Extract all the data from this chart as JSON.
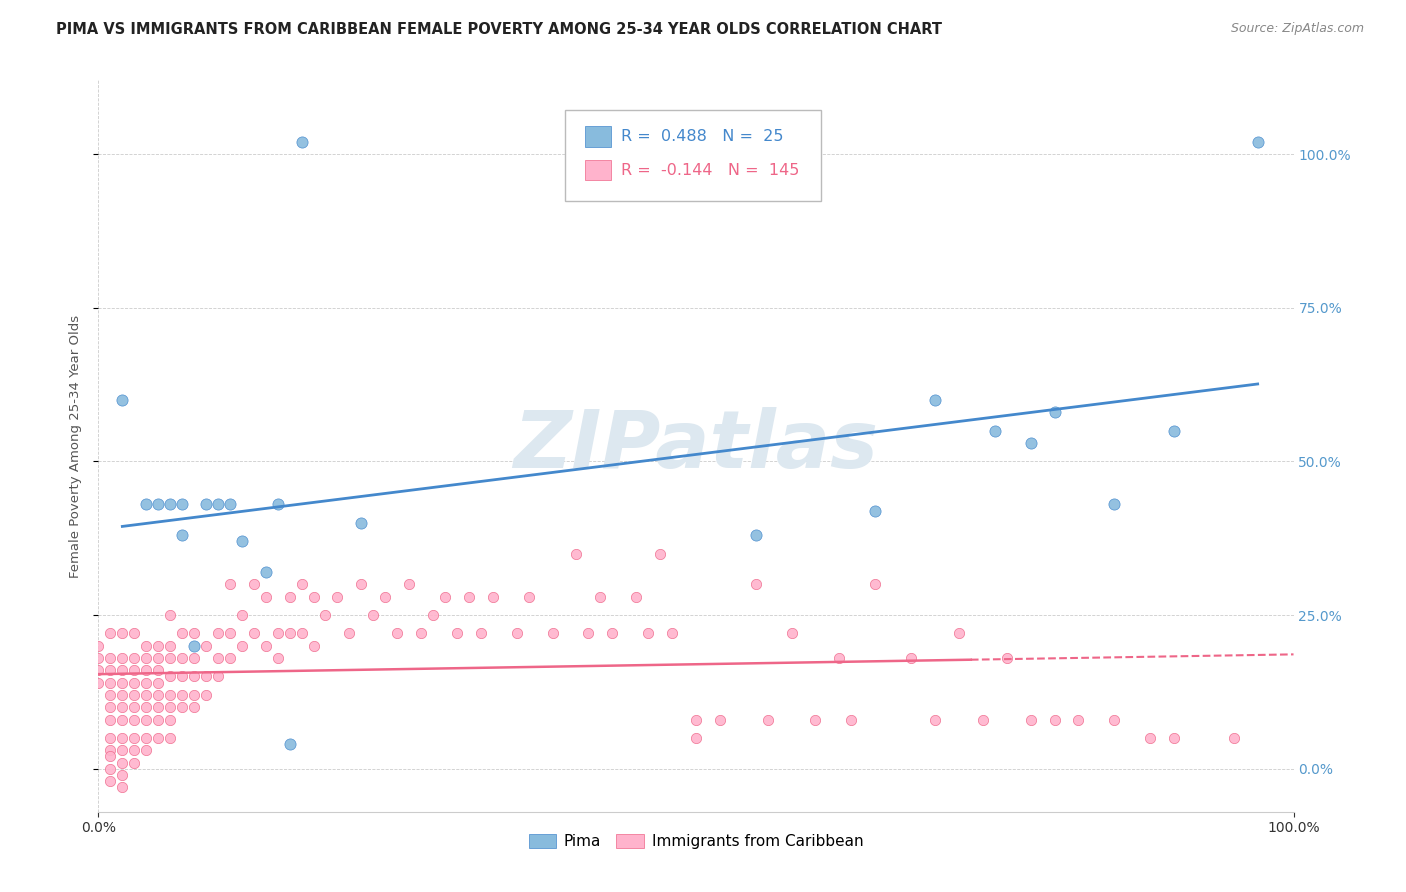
{
  "title": "PIMA VS IMMIGRANTS FROM CARIBBEAN FEMALE POVERTY AMONG 25-34 YEAR OLDS CORRELATION CHART",
  "source": "Source: ZipAtlas.com",
  "ylabel": "Female Poverty Among 25-34 Year Olds",
  "legend_labels": [
    "Pima",
    "Immigrants from Caribbean"
  ],
  "pima_R": 0.488,
  "pima_N": 25,
  "carib_R": -0.144,
  "carib_N": 145,
  "pima_color": "#88BBDD",
  "carib_color": "#FFB3CC",
  "pima_line_color": "#4488CC",
  "carib_line_color": "#EE6688",
  "right_axis_color": "#5599CC",
  "xlim": [
    0.0,
    1.0
  ],
  "ylim": [
    -0.07,
    1.12
  ],
  "yticks": [
    0.0,
    0.25,
    0.5,
    0.75,
    1.0
  ],
  "xtick_left": 0.0,
  "xtick_right": 1.0,
  "pima_points": [
    [
      0.02,
      0.6
    ],
    [
      0.04,
      0.43
    ],
    [
      0.05,
      0.43
    ],
    [
      0.06,
      0.43
    ],
    [
      0.07,
      0.43
    ],
    [
      0.07,
      0.38
    ],
    [
      0.08,
      0.2
    ],
    [
      0.09,
      0.43
    ],
    [
      0.1,
      0.43
    ],
    [
      0.11,
      0.43
    ],
    [
      0.12,
      0.37
    ],
    [
      0.14,
      0.32
    ],
    [
      0.15,
      0.43
    ],
    [
      0.16,
      0.04
    ],
    [
      0.17,
      1.02
    ],
    [
      0.22,
      0.4
    ],
    [
      0.55,
      0.38
    ],
    [
      0.65,
      0.42
    ],
    [
      0.7,
      0.6
    ],
    [
      0.75,
      0.55
    ],
    [
      0.78,
      0.53
    ],
    [
      0.8,
      0.58
    ],
    [
      0.85,
      0.43
    ],
    [
      0.9,
      0.55
    ],
    [
      0.97,
      1.02
    ]
  ],
  "carib_points": [
    [
      0.0,
      0.2
    ],
    [
      0.0,
      0.18
    ],
    [
      0.0,
      0.16
    ],
    [
      0.0,
      0.14
    ],
    [
      0.01,
      0.22
    ],
    [
      0.01,
      0.18
    ],
    [
      0.01,
      0.16
    ],
    [
      0.01,
      0.14
    ],
    [
      0.01,
      0.12
    ],
    [
      0.01,
      0.1
    ],
    [
      0.01,
      0.08
    ],
    [
      0.01,
      0.05
    ],
    [
      0.01,
      0.03
    ],
    [
      0.01,
      0.02
    ],
    [
      0.01,
      0.0
    ],
    [
      0.01,
      -0.02
    ],
    [
      0.02,
      0.22
    ],
    [
      0.02,
      0.18
    ],
    [
      0.02,
      0.16
    ],
    [
      0.02,
      0.14
    ],
    [
      0.02,
      0.12
    ],
    [
      0.02,
      0.1
    ],
    [
      0.02,
      0.08
    ],
    [
      0.02,
      0.05
    ],
    [
      0.02,
      0.03
    ],
    [
      0.02,
      0.01
    ],
    [
      0.02,
      -0.01
    ],
    [
      0.02,
      -0.03
    ],
    [
      0.03,
      0.22
    ],
    [
      0.03,
      0.18
    ],
    [
      0.03,
      0.16
    ],
    [
      0.03,
      0.14
    ],
    [
      0.03,
      0.12
    ],
    [
      0.03,
      0.1
    ],
    [
      0.03,
      0.08
    ],
    [
      0.03,
      0.05
    ],
    [
      0.03,
      0.03
    ],
    [
      0.03,
      0.01
    ],
    [
      0.04,
      0.2
    ],
    [
      0.04,
      0.18
    ],
    [
      0.04,
      0.16
    ],
    [
      0.04,
      0.14
    ],
    [
      0.04,
      0.12
    ],
    [
      0.04,
      0.1
    ],
    [
      0.04,
      0.08
    ],
    [
      0.04,
      0.05
    ],
    [
      0.04,
      0.03
    ],
    [
      0.05,
      0.2
    ],
    [
      0.05,
      0.18
    ],
    [
      0.05,
      0.16
    ],
    [
      0.05,
      0.14
    ],
    [
      0.05,
      0.12
    ],
    [
      0.05,
      0.1
    ],
    [
      0.05,
      0.08
    ],
    [
      0.05,
      0.05
    ],
    [
      0.06,
      0.25
    ],
    [
      0.06,
      0.2
    ],
    [
      0.06,
      0.18
    ],
    [
      0.06,
      0.15
    ],
    [
      0.06,
      0.12
    ],
    [
      0.06,
      0.1
    ],
    [
      0.06,
      0.08
    ],
    [
      0.06,
      0.05
    ],
    [
      0.07,
      0.22
    ],
    [
      0.07,
      0.18
    ],
    [
      0.07,
      0.15
    ],
    [
      0.07,
      0.12
    ],
    [
      0.07,
      0.1
    ],
    [
      0.08,
      0.22
    ],
    [
      0.08,
      0.18
    ],
    [
      0.08,
      0.15
    ],
    [
      0.08,
      0.12
    ],
    [
      0.08,
      0.1
    ],
    [
      0.09,
      0.2
    ],
    [
      0.09,
      0.15
    ],
    [
      0.09,
      0.12
    ],
    [
      0.1,
      0.22
    ],
    [
      0.1,
      0.18
    ],
    [
      0.1,
      0.15
    ],
    [
      0.11,
      0.3
    ],
    [
      0.11,
      0.22
    ],
    [
      0.11,
      0.18
    ],
    [
      0.12,
      0.25
    ],
    [
      0.12,
      0.2
    ],
    [
      0.13,
      0.3
    ],
    [
      0.13,
      0.22
    ],
    [
      0.14,
      0.28
    ],
    [
      0.14,
      0.2
    ],
    [
      0.15,
      0.22
    ],
    [
      0.15,
      0.18
    ],
    [
      0.16,
      0.28
    ],
    [
      0.16,
      0.22
    ],
    [
      0.17,
      0.3
    ],
    [
      0.17,
      0.22
    ],
    [
      0.18,
      0.28
    ],
    [
      0.18,
      0.2
    ],
    [
      0.19,
      0.25
    ],
    [
      0.2,
      0.28
    ],
    [
      0.21,
      0.22
    ],
    [
      0.22,
      0.3
    ],
    [
      0.23,
      0.25
    ],
    [
      0.24,
      0.28
    ],
    [
      0.25,
      0.22
    ],
    [
      0.26,
      0.3
    ],
    [
      0.27,
      0.22
    ],
    [
      0.28,
      0.25
    ],
    [
      0.29,
      0.28
    ],
    [
      0.3,
      0.22
    ],
    [
      0.31,
      0.28
    ],
    [
      0.32,
      0.22
    ],
    [
      0.33,
      0.28
    ],
    [
      0.35,
      0.22
    ],
    [
      0.36,
      0.28
    ],
    [
      0.38,
      0.22
    ],
    [
      0.4,
      0.35
    ],
    [
      0.41,
      0.22
    ],
    [
      0.42,
      0.28
    ],
    [
      0.43,
      0.22
    ],
    [
      0.45,
      0.28
    ],
    [
      0.46,
      0.22
    ],
    [
      0.47,
      0.35
    ],
    [
      0.48,
      0.22
    ],
    [
      0.5,
      0.08
    ],
    [
      0.5,
      0.05
    ],
    [
      0.52,
      0.08
    ],
    [
      0.55,
      0.3
    ],
    [
      0.56,
      0.08
    ],
    [
      0.58,
      0.22
    ],
    [
      0.6,
      0.08
    ],
    [
      0.62,
      0.18
    ],
    [
      0.63,
      0.08
    ],
    [
      0.65,
      0.3
    ],
    [
      0.68,
      0.18
    ],
    [
      0.7,
      0.08
    ],
    [
      0.72,
      0.22
    ],
    [
      0.74,
      0.08
    ],
    [
      0.76,
      0.18
    ],
    [
      0.78,
      0.08
    ],
    [
      0.8,
      0.08
    ],
    [
      0.82,
      0.08
    ],
    [
      0.85,
      0.08
    ],
    [
      0.88,
      0.05
    ],
    [
      0.9,
      0.05
    ],
    [
      0.95,
      0.05
    ]
  ],
  "title_fontsize": 10.5,
  "label_fontsize": 9.5,
  "tick_fontsize": 10,
  "legend_fontsize": 11,
  "source_fontsize": 9
}
